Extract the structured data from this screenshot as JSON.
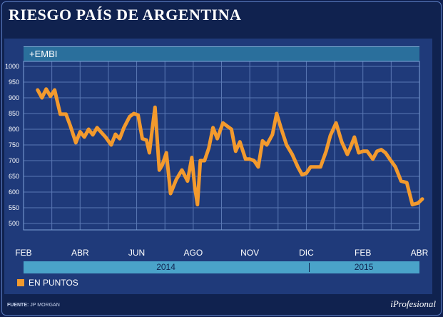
{
  "title": "RIESGO PAÍS DE ARGENTINA",
  "series_label": "+EMBI",
  "legend_label": "EN PUNTOS",
  "source_prefix": "FUENTE:",
  "source_text": "JP MORGAN",
  "brand": "iProfesional",
  "colors": {
    "line": "#f39a2d",
    "grid": "#5a78b4",
    "panel": "#1f3a7a",
    "year_bar": "#4aa3c9"
  },
  "chart_data": {
    "type": "line",
    "title": "RIESGO PAÍS DE ARGENTINA",
    "xlabel": "",
    "ylabel": "EN PUNTOS",
    "ylim": [
      450,
      1000
    ],
    "yticks": [
      500,
      550,
      600,
      650,
      700,
      750,
      800,
      850,
      900,
      950,
      1000
    ],
    "xlim": [
      0,
      14
    ],
    "month_ticks": [
      {
        "label": "FEB",
        "pos": 0
      },
      {
        "label": "ABR",
        "pos": 2
      },
      {
        "label": "JUN",
        "pos": 4
      },
      {
        "label": "AGO",
        "pos": 6
      },
      {
        "label": "NOV",
        "pos": 8
      },
      {
        "label": "DIC",
        "pos": 10
      },
      {
        "label": "FEB",
        "pos": 12
      },
      {
        "label": "ABR",
        "pos": 14
      }
    ],
    "years": [
      {
        "label": "2014",
        "from": 0,
        "to": 10.1
      },
      {
        "label": "2015",
        "from": 10.1,
        "to": 14
      }
    ],
    "series": [
      {
        "name": "EMBI",
        "x": [
          0.5,
          0.65,
          0.8,
          0.95,
          1.1,
          1.3,
          1.5,
          1.65,
          1.85,
          2.0,
          2.15,
          2.3,
          2.45,
          2.6,
          2.75,
          2.9,
          3.1,
          3.25,
          3.4,
          3.55,
          3.75,
          3.9,
          4.05,
          4.2,
          4.35,
          4.45,
          4.55,
          4.65,
          4.8,
          4.9,
          5.05,
          5.2,
          5.4,
          5.6,
          5.8,
          5.95,
          6.05,
          6.15,
          6.25,
          6.4,
          6.55,
          6.7,
          6.85,
          7.05,
          7.2,
          7.35,
          7.5,
          7.65,
          7.85,
          8.0,
          8.15,
          8.3,
          8.45,
          8.6,
          8.8,
          8.95,
          9.1,
          9.3,
          9.5,
          9.7,
          9.85,
          10.0,
          10.15,
          10.3,
          10.5,
          10.7,
          10.85,
          11.05,
          11.25,
          11.45,
          11.55,
          11.7,
          11.85,
          12.0,
          12.15,
          12.35,
          12.5,
          12.65,
          12.8,
          12.95,
          13.15,
          13.35,
          13.55,
          13.75
        ],
        "values": [
          925,
          900,
          928,
          905,
          925,
          848,
          848,
          812,
          757,
          792,
          775,
          800,
          782,
          805,
          790,
          775,
          750,
          784,
          770,
          805,
          840,
          850,
          845,
          770,
          765,
          725,
          800,
          870,
          670,
          685,
          725,
          595,
          640,
          670,
          635,
          710,
          620,
          560,
          700,
          700,
          740,
          805,
          770,
          820,
          810,
          800,
          730,
          760,
          705,
          705,
          700,
          680,
          763,
          750,
          783,
          850,
          805,
          750,
          720,
          680,
          655,
          660,
          680,
          680,
          680,
          730,
          780,
          820,
          760,
          720,
          740,
          775,
          725,
          730,
          730,
          705,
          730,
          735,
          725,
          705,
          680,
          635,
          630,
          560
        ]
      },
      {
        "name": "EMBI-tail",
        "x": [
          13.75,
          13.95,
          14.1
        ],
        "values": [
          560,
          565,
          578
        ]
      }
    ]
  }
}
